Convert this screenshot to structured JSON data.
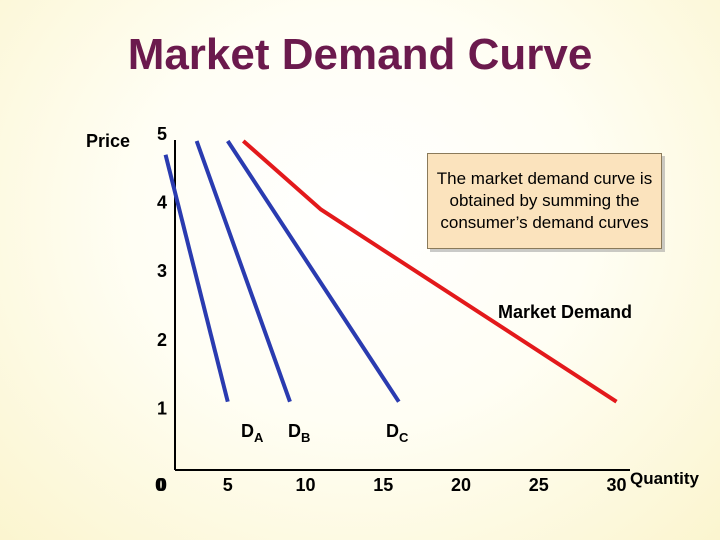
{
  "chart_data": {
    "type": "line",
    "title": "Market Demand Curve",
    "ylabel": "Price",
    "xlabel": "Quantity",
    "x_ticks": [
      "0",
      "5",
      "10",
      "15",
      "20",
      "25",
      "30"
    ],
    "y_ticks": [
      "0",
      "1",
      "2",
      "3",
      "4",
      "5"
    ],
    "xlim": [
      0,
      30
    ],
    "ylim": [
      0,
      5
    ],
    "series": [
      {
        "name": "DA",
        "x": [
          1,
          5
        ],
        "y": [
          4.8,
          1.2
        ],
        "color": "#2a3bb0"
      },
      {
        "name": "DB",
        "x": [
          3,
          9
        ],
        "y": [
          5,
          1.2
        ],
        "color": "#2a3bb0"
      },
      {
        "name": "DC",
        "x": [
          5,
          16
        ],
        "y": [
          5,
          1.2
        ],
        "color": "#2a3bb0"
      },
      {
        "name": "Market Demand",
        "x": [
          6,
          11,
          30
        ],
        "y": [
          5,
          4,
          1.2
        ],
        "color": "#e3191b"
      }
    ],
    "labels": {
      "da": {
        "main": "D",
        "sub": "A"
      },
      "db": {
        "main": "D",
        "sub": "B"
      },
      "dc": {
        "main": "D",
        "sub": "C"
      },
      "market": "Market Demand"
    },
    "annotation": "The market demand curve is obtained by summing the consumer’s demand curves",
    "grid": false
  }
}
